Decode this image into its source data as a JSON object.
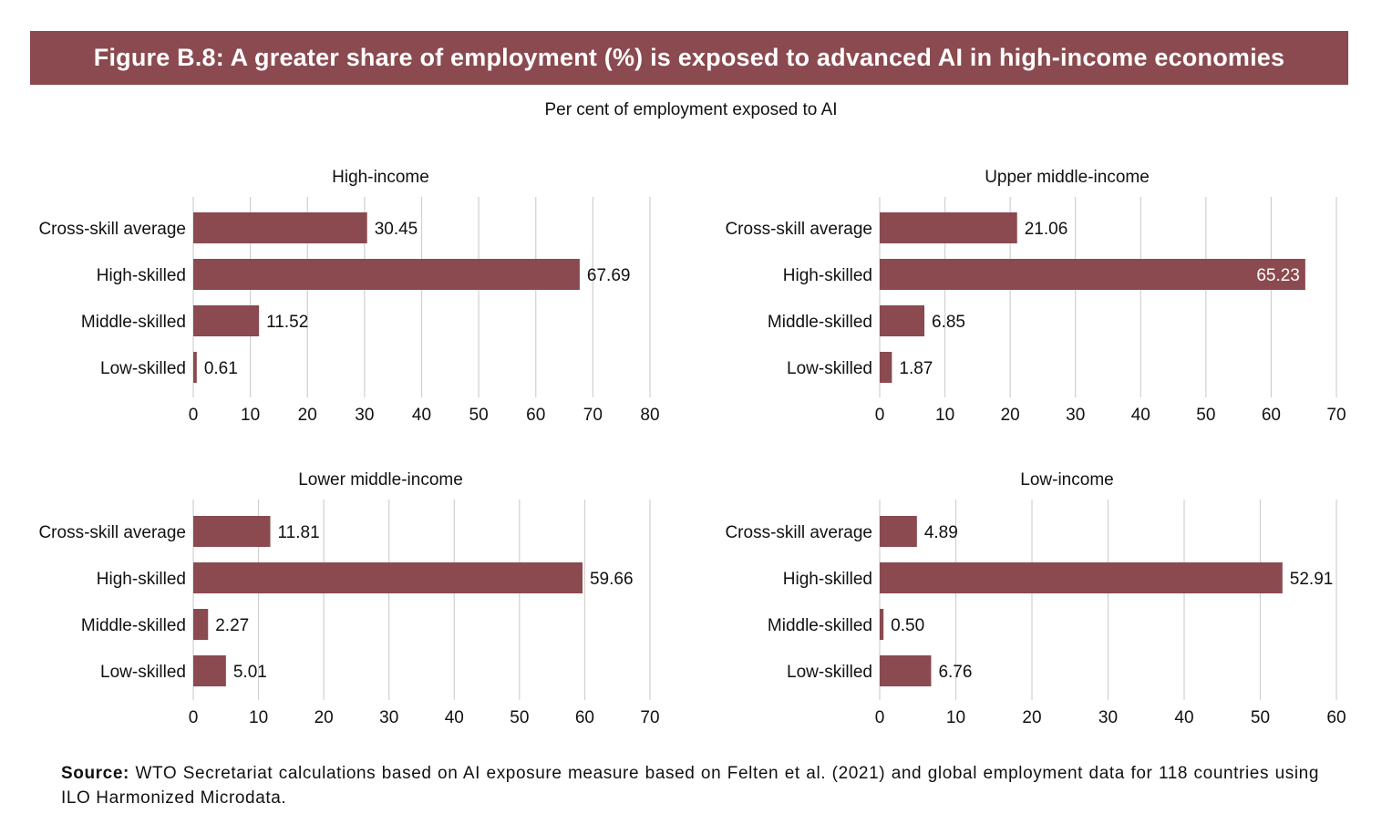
{
  "figure": {
    "title": "Figure B.8: A greater share of employment (%) is exposed to advanced AI in high-income economies",
    "subtitle": "Per cent of employment exposed to AI",
    "source_label": "Source:",
    "source_text": "WTO Secretariat calculations based on AI exposure measure based on Felten et al. (2021) and global employment data for 118 countries using ILO Harmonized Microdata."
  },
  "colors": {
    "bar": "#8a4a4f",
    "grid": "#d0d0d0",
    "banner": "#8a4a4f"
  },
  "chart_data": [
    {
      "type": "bar",
      "orientation": "horizontal",
      "title": "High-income",
      "categories": [
        "Cross-skill average",
        "High-skilled",
        "Middle-skilled",
        "Low-skilled"
      ],
      "values": [
        30.45,
        67.69,
        11.52,
        0.61
      ],
      "value_labels": [
        "30.45",
        "67.69",
        "11.52",
        "0.61"
      ],
      "xlim": [
        0,
        80
      ],
      "ticks": [
        0,
        10,
        20,
        30,
        40,
        50,
        60,
        70,
        80
      ],
      "grid": true
    },
    {
      "type": "bar",
      "orientation": "horizontal",
      "title": "Upper middle-income",
      "categories": [
        "Cross-skill average",
        "High-skilled",
        "Middle-skilled",
        "Low-skilled"
      ],
      "values": [
        21.06,
        65.23,
        6.85,
        1.87
      ],
      "value_labels": [
        "21.06",
        "65.23",
        "6.85",
        "1.87"
      ],
      "xlim": [
        0,
        70
      ],
      "ticks": [
        0,
        10,
        20,
        30,
        40,
        50,
        60,
        70
      ],
      "grid": true
    },
    {
      "type": "bar",
      "orientation": "horizontal",
      "title": "Lower middle-income",
      "categories": [
        "Cross-skill average",
        "High-skilled",
        "Middle-skilled",
        "Low-skilled"
      ],
      "values": [
        11.81,
        59.66,
        2.27,
        5.01
      ],
      "value_labels": [
        "11.81",
        "59.66",
        "2.27",
        "5.01"
      ],
      "xlim": [
        0,
        70
      ],
      "ticks": [
        0,
        10,
        20,
        30,
        40,
        50,
        60,
        70
      ],
      "grid": true
    },
    {
      "type": "bar",
      "orientation": "horizontal",
      "title": "Low-income",
      "categories": [
        "Cross-skill average",
        "High-skilled",
        "Middle-skilled",
        "Low-skilled"
      ],
      "values": [
        4.89,
        52.91,
        0.5,
        6.76
      ],
      "value_labels": [
        "4.89",
        "52.91",
        "0.50",
        "6.76"
      ],
      "xlim": [
        0,
        60
      ],
      "ticks": [
        0,
        10,
        20,
        30,
        40,
        50,
        60
      ],
      "grid": true
    }
  ]
}
